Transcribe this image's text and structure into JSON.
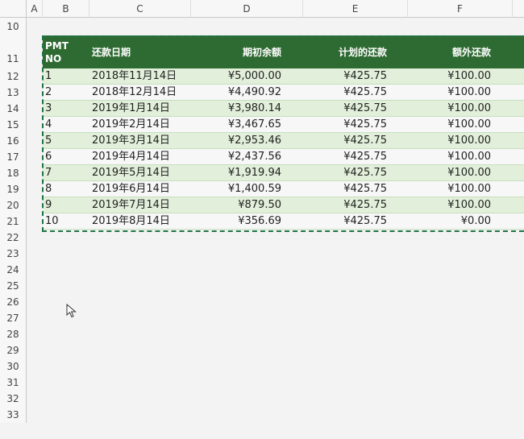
{
  "sheet": {
    "columns": [
      "A",
      "B",
      "C",
      "D",
      "E",
      "F"
    ],
    "rows": [
      "10",
      "11",
      "12",
      "13",
      "14",
      "15",
      "16",
      "17",
      "18",
      "19",
      "20",
      "21",
      "22",
      "23",
      "24",
      "25",
      "26",
      "27",
      "28",
      "29",
      "30",
      "31",
      "32",
      "33"
    ]
  },
  "table": {
    "headers": {
      "pmt_line1": "PMT",
      "pmt_line2": "NO",
      "date": "还款日期",
      "begin_balance": "期初余额",
      "scheduled": "计划的还款",
      "extra": "额外还款"
    },
    "rows": [
      {
        "no": "1",
        "date": "2018年11月14日",
        "begin": "¥5,000.00",
        "scheduled": "¥425.75",
        "extra": "¥100.00"
      },
      {
        "no": "2",
        "date": "2018年12月14日",
        "begin": "¥4,490.92",
        "scheduled": "¥425.75",
        "extra": "¥100.00"
      },
      {
        "no": "3",
        "date": "2019年1月14日",
        "begin": "¥3,980.14",
        "scheduled": "¥425.75",
        "extra": "¥100.00"
      },
      {
        "no": "4",
        "date": "2019年2月14日",
        "begin": "¥3,467.65",
        "scheduled": "¥425.75",
        "extra": "¥100.00"
      },
      {
        "no": "5",
        "date": "2019年3月14日",
        "begin": "¥2,953.46",
        "scheduled": "¥425.75",
        "extra": "¥100.00"
      },
      {
        "no": "6",
        "date": "2019年4月14日",
        "begin": "¥2,437.56",
        "scheduled": "¥425.75",
        "extra": "¥100.00"
      },
      {
        "no": "7",
        "date": "2019年5月14日",
        "begin": "¥1,919.94",
        "scheduled": "¥425.75",
        "extra": "¥100.00"
      },
      {
        "no": "8",
        "date": "2019年6月14日",
        "begin": "¥1,400.59",
        "scheduled": "¥425.75",
        "extra": "¥100.00"
      },
      {
        "no": "9",
        "date": "2019年7月14日",
        "begin": "¥879.50",
        "scheduled": "¥425.75",
        "extra": "¥100.00"
      },
      {
        "no": "10",
        "date": "2019年8月14日",
        "begin": "¥356.69",
        "scheduled": "¥425.75",
        "extra": "¥0.00"
      }
    ]
  },
  "colors": {
    "header_green": "#2e6b32",
    "band_light": "#e2efda",
    "selection": "#217346"
  },
  "icons": {
    "cursor": "mouse-pointer-icon"
  }
}
